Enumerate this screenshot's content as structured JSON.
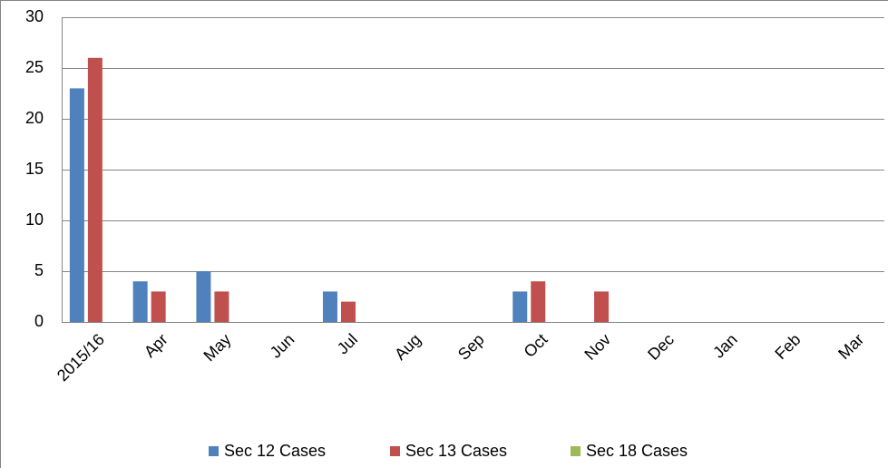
{
  "chart_data": {
    "type": "bar",
    "categories": [
      "2015/16",
      "Apr",
      "May",
      "Jun",
      "Jul",
      "Aug",
      "Sep",
      "Oct",
      "Nov",
      "Dec",
      "Jan",
      "Feb",
      "Mar"
    ],
    "series": [
      {
        "name": "Sec 12 Cases",
        "color": "#4f81bd",
        "values": [
          23,
          4,
          5,
          0,
          3,
          0,
          0,
          3,
          0,
          0,
          0,
          0,
          0
        ]
      },
      {
        "name": "Sec 13 Cases",
        "color": "#c0504d",
        "values": [
          26,
          3,
          3,
          0,
          2,
          0,
          0,
          4,
          3,
          0,
          0,
          0,
          0
        ]
      },
      {
        "name": "Sec 18 Cases",
        "color": "#9bbb59",
        "values": [
          0,
          0,
          0,
          0,
          0,
          0,
          0,
          0,
          0,
          0,
          0,
          0,
          0
        ]
      }
    ],
    "ylim": [
      0,
      30
    ],
    "yticks": [
      0,
      5,
      10,
      15,
      20,
      25,
      30
    ],
    "grid": true,
    "legend": "bottom"
  }
}
